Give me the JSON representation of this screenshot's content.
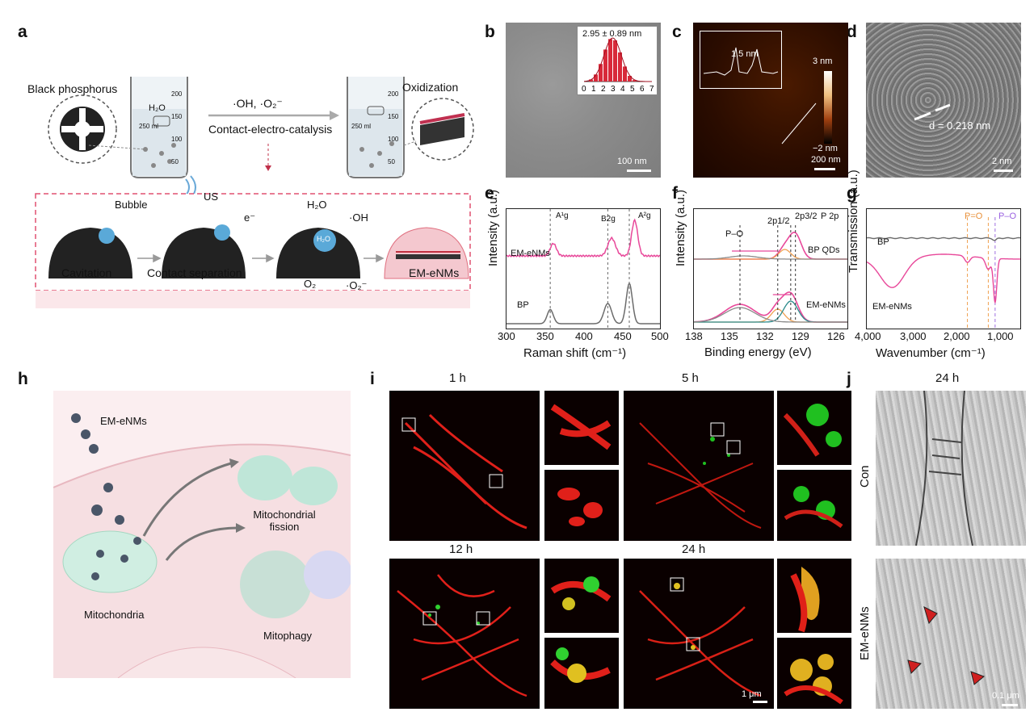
{
  "panels": {
    "a": "a",
    "b": "b",
    "c": "c",
    "d": "d",
    "e": "e",
    "f": "f",
    "g": "g",
    "h": "h",
    "i": "i",
    "j": "j"
  },
  "panel_a": {
    "black_phosphorus": "Black phosphorus",
    "oxidization": "Oxidization",
    "reagents": "·OH, ·O₂⁻",
    "process": "Contact-electro-catalysis",
    "us": "US",
    "h2o": "H₂O",
    "beaker_vol": "250 ml",
    "ticks": [
      "200",
      "150",
      "100",
      "50"
    ],
    "bubble": "Bubble",
    "electron": "e⁻",
    "h2o_top": "H₂O",
    "oh": "·OH",
    "h2o_in": "H₂O",
    "o2": "O₂",
    "o2minus": "·O₂⁻",
    "steps": [
      "Cavitation",
      "Contact separation",
      "EM-eNMs"
    ]
  },
  "panel_b": {
    "size": "2.95 ± 0.89 nm",
    "ticks": [
      "0",
      "1",
      "2",
      "3",
      "4",
      "5",
      "6",
      "7"
    ],
    "scale": "100 nm"
  },
  "panel_c": {
    "height": "1.5 nm",
    "cbar_top": "3 nm",
    "cbar_bottom": "−2 nm",
    "scale": "200 nm"
  },
  "panel_d": {
    "spacing": "d = 0.218 nm",
    "scale": "2 nm"
  },
  "panel_e": {
    "ylabel": "Intensity (a.u.)",
    "xlabel": "Raman shift (cm⁻¹)",
    "xticks": [
      "300",
      "350",
      "400",
      "450",
      "500"
    ],
    "series": [
      "EM-eNMs",
      "BP"
    ],
    "peaks": [
      "A¹g",
      "B2g",
      "A²g"
    ]
  },
  "panel_f": {
    "ylabel": "Intensity (a.u.)",
    "xlabel": "Binding energy (eV)",
    "xticks": [
      "138",
      "135",
      "132",
      "129",
      "126"
    ],
    "title": "P 2p",
    "series": [
      "BP QDs",
      "EM-eNMs"
    ],
    "peaks": [
      "P–O",
      "2p1/2",
      "2p3/2"
    ]
  },
  "panel_g": {
    "ylabel": "Transmission (a.u.)",
    "xlabel": "Wavenumber (cm⁻¹)",
    "xticks": [
      "4,000",
      "3,000",
      "2,000",
      "1,000"
    ],
    "series": [
      "BP",
      "EM-eNMs"
    ],
    "bands": [
      "P=O",
      "P–O"
    ]
  },
  "panel_h": {
    "particles": "EM-eNMs",
    "fission": "Mitochondrial fission",
    "mito": "Mitochondria",
    "mitophagy": "Mitophagy"
  },
  "panel_i": {
    "times": [
      "1 h",
      "5 h",
      "12 h",
      "24 h"
    ],
    "scale": "1 μm"
  },
  "panel_j": {
    "time": "24 h",
    "rows": [
      "Con",
      "EM-eNMs"
    ],
    "scale": "0.1 μm"
  },
  "colors": {
    "pink": "#e8489a",
    "gray": "#6b6b6b",
    "orange": "#f0a050",
    "purple": "#a070e0",
    "red": "#e02020",
    "green": "#20d020"
  },
  "chart_data": [
    {
      "type": "line",
      "xlabel": "Raman shift (cm⁻¹)",
      "ylabel": "Intensity (a.u.)",
      "xlim": [
        300,
        500
      ],
      "series": [
        {
          "name": "EM-eNMs",
          "peaks_x": [
            361,
            437,
            467
          ]
        },
        {
          "name": "BP",
          "peaks_x": [
            357,
            432,
            460
          ]
        }
      ]
    },
    {
      "type": "line",
      "xlabel": "Binding energy (eV)",
      "ylabel": "Intensity (a.u.)",
      "xlim": [
        138,
        125
      ],
      "series": [
        {
          "name": "BP QDs",
          "peaks_x": [
            130.3,
            129.4
          ]
        },
        {
          "name": "EM-eNMs",
          "peaks_x": [
            134.1,
            130.9,
            129.8
          ]
        }
      ]
    },
    {
      "type": "line",
      "xlabel": "Wavenumber (cm⁻¹)",
      "ylabel": "Transmission (a.u.)",
      "xlim": [
        4000,
        400
      ],
      "series": [
        {
          "name": "BP"
        },
        {
          "name": "EM-eNMs",
          "dips_x": [
            3400,
            1640,
            1150,
            990
          ]
        }
      ]
    },
    {
      "type": "bar",
      "x": [
        0,
        1,
        2,
        3,
        4,
        5,
        6,
        7
      ],
      "xlim": [
        0,
        7
      ],
      "mean": 2.95,
      "sd": 0.89
    }
  ]
}
